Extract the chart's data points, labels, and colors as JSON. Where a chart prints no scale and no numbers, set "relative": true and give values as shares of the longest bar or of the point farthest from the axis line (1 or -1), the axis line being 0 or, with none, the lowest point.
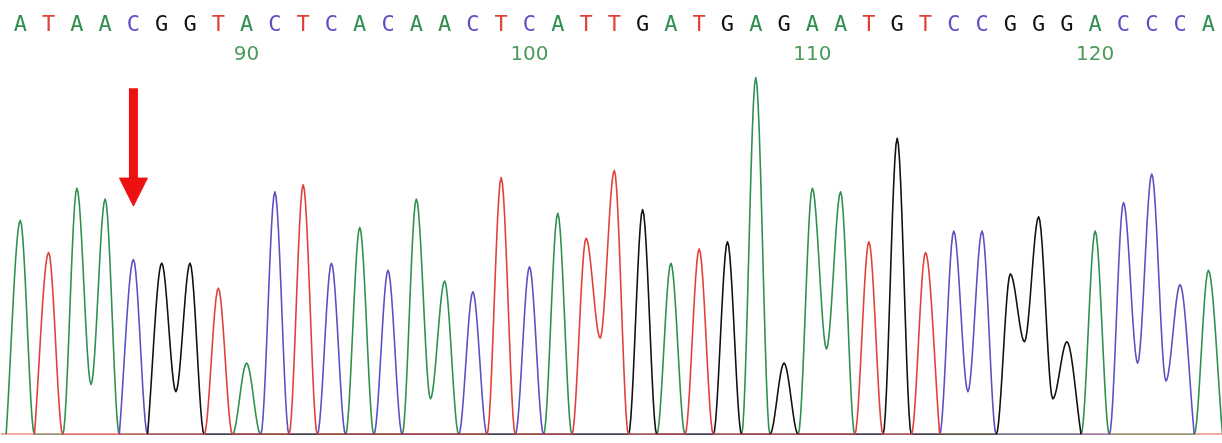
{
  "chart_data": {
    "type": "line",
    "relative": true,
    "line_style": "solid",
    "xlim": [
      81.3,
      124.5
    ],
    "xticks": [
      90,
      100,
      110,
      120
    ],
    "annotations": [
      "A",
      "T",
      "A",
      "A",
      "C",
      "G",
      "G",
      "T",
      "A",
      "C",
      "T",
      "C",
      "A",
      "C",
      "A",
      "A",
      "C",
      "T",
      "C",
      "A",
      "T",
      "T",
      "G",
      "A",
      "T",
      "G",
      "A",
      "G",
      "A",
      "A",
      "T",
      "G",
      "T",
      "C",
      "C",
      "G",
      "G",
      "G",
      "A",
      "C",
      "C",
      "C",
      "A"
    ],
    "series": [
      {
        "color": "#2f8f4f",
        "x": [
          81.5,
          82,
          82.5,
          83.5,
          84,
          84.5,
          85,
          85.5,
          89.5,
          90,
          90.5,
          93.5,
          94,
          94.5,
          95.5,
          96,
          96.5,
          97,
          97.5,
          100.5,
          101,
          101.5,
          104.5,
          105,
          105.5,
          107.5,
          108,
          108.5,
          109.5,
          110,
          110.5,
          111,
          111.5,
          119.5,
          120,
          120.5,
          123.5,
          124,
          124.5
        ],
        "values": [
          0,
          0.6,
          0,
          0,
          0.69,
          0.14,
          0.66,
          0,
          0,
          0.2,
          0,
          0,
          0.58,
          0,
          0,
          0.66,
          0.1,
          0.43,
          0,
          0,
          0.62,
          0,
          0,
          0.48,
          0,
          0,
          1.0,
          0,
          0,
          0.69,
          0.24,
          0.68,
          0,
          0,
          0.57,
          0,
          0,
          0.46,
          0
        ]
      },
      {
        "color": "#5b4fc4",
        "x": [
          85.5,
          86,
          86.5,
          90.5,
          91,
          91.5,
          92.5,
          93,
          93.5,
          94.5,
          95,
          95.5,
          97.5,
          98,
          98.5,
          99.5,
          100,
          100.5,
          114.5,
          115,
          115.5,
          116,
          116.5,
          120.5,
          121,
          121.5,
          122,
          122.5,
          123,
          123.5
        ],
        "values": [
          0,
          0.49,
          0,
          0,
          0.68,
          0,
          0,
          0.48,
          0,
          0,
          0.46,
          0,
          0,
          0.4,
          0,
          0,
          0.47,
          0,
          0,
          0.57,
          0.12,
          0.57,
          0,
          0,
          0.65,
          0.2,
          0.73,
          0.15,
          0.42,
          0
        ]
      },
      {
        "color": "#111111",
        "x": [
          86.5,
          87,
          87.5,
          88,
          88.5,
          103.5,
          104,
          104.5,
          106.5,
          107,
          107.5,
          108.5,
          109,
          109.5,
          112.5,
          113,
          113.5,
          116.5,
          117,
          117.5,
          118,
          118.5,
          119,
          119.5
        ],
        "values": [
          0,
          0.48,
          0.12,
          0.48,
          0,
          0,
          0.63,
          0,
          0,
          0.54,
          0,
          0,
          0.2,
          0,
          0,
          0.83,
          0,
          0,
          0.45,
          0.26,
          0.61,
          0.1,
          0.26,
          0
        ]
      },
      {
        "color": "#e0403a",
        "x": [
          82.5,
          83,
          83.5,
          88.5,
          89,
          89.5,
          91.5,
          92,
          92.5,
          98.5,
          99,
          99.5,
          101.5,
          102,
          102.5,
          103,
          103.5,
          105.5,
          106,
          106.5,
          111.5,
          112,
          112.5,
          113.5,
          114,
          114.5
        ],
        "values": [
          0,
          0.51,
          0,
          0,
          0.41,
          0,
          0,
          0.7,
          0,
          0,
          0.72,
          0,
          0,
          0.55,
          0.27,
          0.74,
          0,
          0,
          0.52,
          0,
          0,
          0.54,
          0,
          0,
          0.51,
          0
        ]
      }
    ]
  }
}
